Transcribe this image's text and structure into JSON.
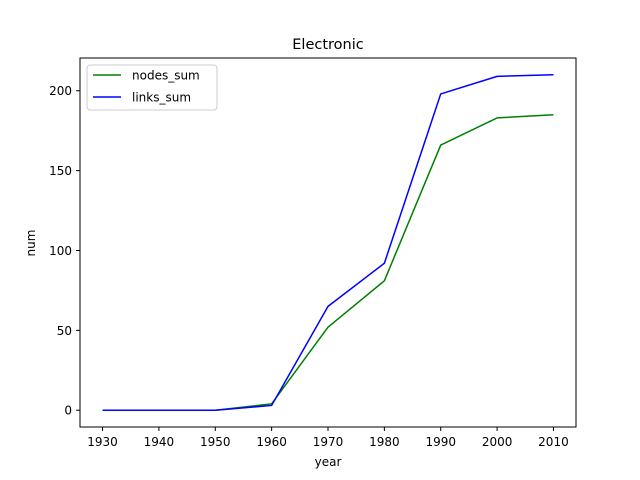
{
  "chart_data": {
    "type": "line",
    "title": "Electronic",
    "xlabel": "year",
    "ylabel": "num",
    "x": [
      1930,
      1940,
      1950,
      1960,
      1970,
      1980,
      1990,
      2000,
      2010
    ],
    "xlim": [
      1926,
      2014
    ],
    "ylim": [
      -10.5,
      220.5
    ],
    "xticks": [
      1930,
      1940,
      1950,
      1960,
      1970,
      1980,
      1990,
      2000,
      2010
    ],
    "yticks": [
      0,
      50,
      100,
      150,
      200
    ],
    "grid": false,
    "legend_position": "upper-left",
    "series": [
      {
        "name": "nodes_sum",
        "color": "#008000",
        "values": [
          0,
          0,
          0,
          4,
          52,
          81,
          166,
          183,
          185
        ]
      },
      {
        "name": "links_sum",
        "color": "#0000ff",
        "values": [
          0,
          0,
          0,
          3,
          65,
          92,
          198,
          209,
          210
        ]
      }
    ]
  }
}
